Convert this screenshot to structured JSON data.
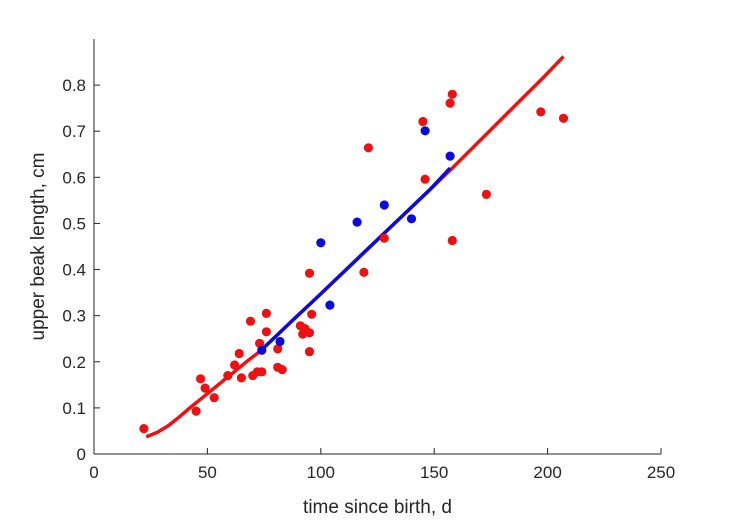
{
  "chart_data": {
    "type": "scatter",
    "title": "",
    "xlabel": "time since birth, d",
    "ylabel": "upper beak length, cm",
    "xlim": [
      0,
      250
    ],
    "ylim": [
      0,
      0.9
    ],
    "xticks": [
      "0",
      "50",
      "100",
      "150",
      "200",
      "250"
    ],
    "yticks": [
      "0",
      "0.1",
      "0.2",
      "0.3",
      "0.4",
      "0.5",
      "0.6",
      "0.7",
      "0.8"
    ],
    "grid": false,
    "colors": {
      "red": "#ee1111",
      "blue": "#0b0bdd",
      "axis": "#262626"
    },
    "series": [
      {
        "kind": "points",
        "color": "#ee1111",
        "points": [
          [
            22,
            0.055
          ],
          [
            45,
            0.093
          ],
          [
            47,
            0.163
          ],
          [
            49,
            0.143
          ],
          [
            53,
            0.122
          ],
          [
            59,
            0.17
          ],
          [
            62,
            0.193
          ],
          [
            64,
            0.218
          ],
          [
            65,
            0.165
          ],
          [
            69,
            0.288
          ],
          [
            70,
            0.17
          ],
          [
            72,
            0.178
          ],
          [
            73,
            0.24
          ],
          [
            74,
            0.178
          ],
          [
            76,
            0.305
          ],
          [
            76,
            0.265
          ],
          [
            81,
            0.228
          ],
          [
            81,
            0.188
          ],
          [
            83,
            0.183
          ],
          [
            91,
            0.278
          ],
          [
            92,
            0.26
          ],
          [
            93,
            0.272
          ],
          [
            95,
            0.263
          ],
          [
            95,
            0.222
          ],
          [
            96,
            0.303
          ],
          [
            95,
            0.392
          ],
          [
            119,
            0.394
          ],
          [
            121,
            0.664
          ],
          [
            128,
            0.468
          ],
          [
            145,
            0.721
          ],
          [
            146,
            0.596
          ],
          [
            157,
            0.761
          ],
          [
            158,
            0.78
          ],
          [
            158,
            0.463
          ],
          [
            173,
            0.563
          ],
          [
            197,
            0.742
          ],
          [
            207,
            0.728
          ]
        ]
      },
      {
        "kind": "points",
        "color": "#0b0bdd",
        "points": [
          [
            74,
            0.225
          ],
          [
            82,
            0.244
          ],
          [
            100,
            0.458
          ],
          [
            104,
            0.323
          ],
          [
            116,
            0.503
          ],
          [
            128,
            0.54
          ],
          [
            140,
            0.51
          ],
          [
            146,
            0.701
          ],
          [
            157,
            0.646
          ]
        ]
      },
      {
        "kind": "curve",
        "color": "#ee1111",
        "points": [
          [
            23,
            0.037
          ],
          [
            28,
            0.047
          ],
          [
            33,
            0.062
          ],
          [
            38,
            0.082
          ],
          [
            43,
            0.103
          ],
          [
            48,
            0.123
          ],
          [
            53,
            0.143
          ],
          [
            58,
            0.163
          ],
          [
            63,
            0.183
          ],
          [
            68,
            0.203
          ],
          [
            73,
            0.222
          ],
          [
            78,
            0.245
          ],
          [
            88,
            0.292
          ],
          [
            98,
            0.338
          ],
          [
            108,
            0.385
          ],
          [
            118,
            0.432
          ],
          [
            128,
            0.479
          ],
          [
            138,
            0.526
          ],
          [
            148,
            0.573
          ],
          [
            158,
            0.62
          ],
          [
            168,
            0.669
          ],
          [
            178,
            0.718
          ],
          [
            188,
            0.767
          ],
          [
            198,
            0.816
          ],
          [
            207,
            0.862
          ]
        ]
      },
      {
        "kind": "curve",
        "color": "#0b0bdd",
        "points": [
          [
            73,
            0.222
          ],
          [
            78,
            0.245
          ],
          [
            88,
            0.292
          ],
          [
            98,
            0.338
          ],
          [
            108,
            0.385
          ],
          [
            118,
            0.432
          ],
          [
            128,
            0.479
          ],
          [
            138,
            0.526
          ],
          [
            148,
            0.573
          ],
          [
            157,
            0.62
          ]
        ]
      }
    ]
  }
}
